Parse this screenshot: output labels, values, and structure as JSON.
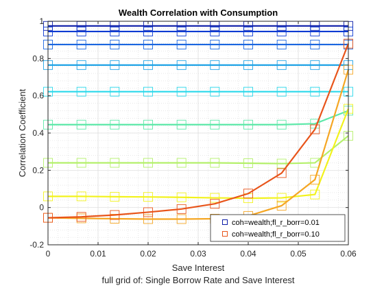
{
  "chart_data": {
    "type": "line",
    "title": "Wealth Correlation with Consumption",
    "xlabel": "Save Interest",
    "ylabel": "Correlation Coefficient",
    "caption": "full grid of: Single Borrow Rate and Save Interest",
    "xlim": [
      0,
      0.06
    ],
    "ylim": [
      -0.2,
      1.0
    ],
    "xticks": [
      0,
      0.01,
      0.02,
      0.03,
      0.04,
      0.05,
      0.06
    ],
    "xtick_labels": [
      "0",
      "0.01",
      "0.02",
      "0.03",
      "0.04",
      "0.05",
      "0.06"
    ],
    "yticks": [
      -0.2,
      0,
      0.2,
      0.4,
      0.6,
      0.8,
      1.0
    ],
    "ytick_labels": [
      "-0.2",
      "0",
      "0.2",
      "0.4",
      "0.6",
      "0.8",
      "1"
    ],
    "grid": true,
    "minor_grid": true,
    "legend_position": "bottom-right",
    "legend_entries": [
      "coh=wealth;fl_r_borr=0.01",
      "coh=wealth;fl_r_borr=0.10"
    ],
    "x": [
      0,
      0.00667,
      0.01333,
      0.02,
      0.02667,
      0.03333,
      0.04,
      0.04667,
      0.05333,
      0.06
    ],
    "series": [
      {
        "color": "#0b1ca8",
        "values": [
          0.975,
          0.975,
          0.975,
          0.975,
          0.975,
          0.975,
          0.975,
          0.975,
          0.975,
          0.975
        ]
      },
      {
        "color": "#0d3ad2",
        "values": [
          0.945,
          0.945,
          0.945,
          0.945,
          0.945,
          0.945,
          0.945,
          0.945,
          0.945,
          0.945
        ]
      },
      {
        "color": "#1a66e0",
        "values": [
          0.875,
          0.875,
          0.875,
          0.875,
          0.875,
          0.875,
          0.875,
          0.875,
          0.875,
          0.875
        ]
      },
      {
        "color": "#1fa3e6",
        "values": [
          0.765,
          0.765,
          0.765,
          0.765,
          0.765,
          0.765,
          0.765,
          0.765,
          0.765,
          0.765
        ]
      },
      {
        "color": "#2ad8ea",
        "values": [
          0.622,
          0.622,
          0.622,
          0.622,
          0.622,
          0.622,
          0.622,
          0.622,
          0.622,
          0.622
        ]
      },
      {
        "color": "#5ce8a8",
        "values": [
          0.445,
          0.445,
          0.445,
          0.445,
          0.445,
          0.445,
          0.445,
          0.445,
          0.45,
          0.52
        ]
      },
      {
        "color": "#b4f06a",
        "values": [
          0.24,
          0.24,
          0.24,
          0.24,
          0.24,
          0.24,
          0.238,
          0.236,
          0.24,
          0.385
        ]
      },
      {
        "color": "#f2f21c",
        "values": [
          0.06,
          0.06,
          0.058,
          0.057,
          0.055,
          0.052,
          0.05,
          0.052,
          0.07,
          0.53
        ]
      },
      {
        "color": "#f5a623",
        "values": [
          -0.055,
          -0.058,
          -0.06,
          -0.062,
          -0.062,
          -0.06,
          -0.045,
          0.01,
          0.15,
          0.74
        ]
      },
      {
        "color": "#e8541a",
        "values": [
          -0.055,
          -0.05,
          -0.04,
          -0.025,
          -0.008,
          0.02,
          0.075,
          0.185,
          0.42,
          0.88
        ]
      }
    ]
  }
}
